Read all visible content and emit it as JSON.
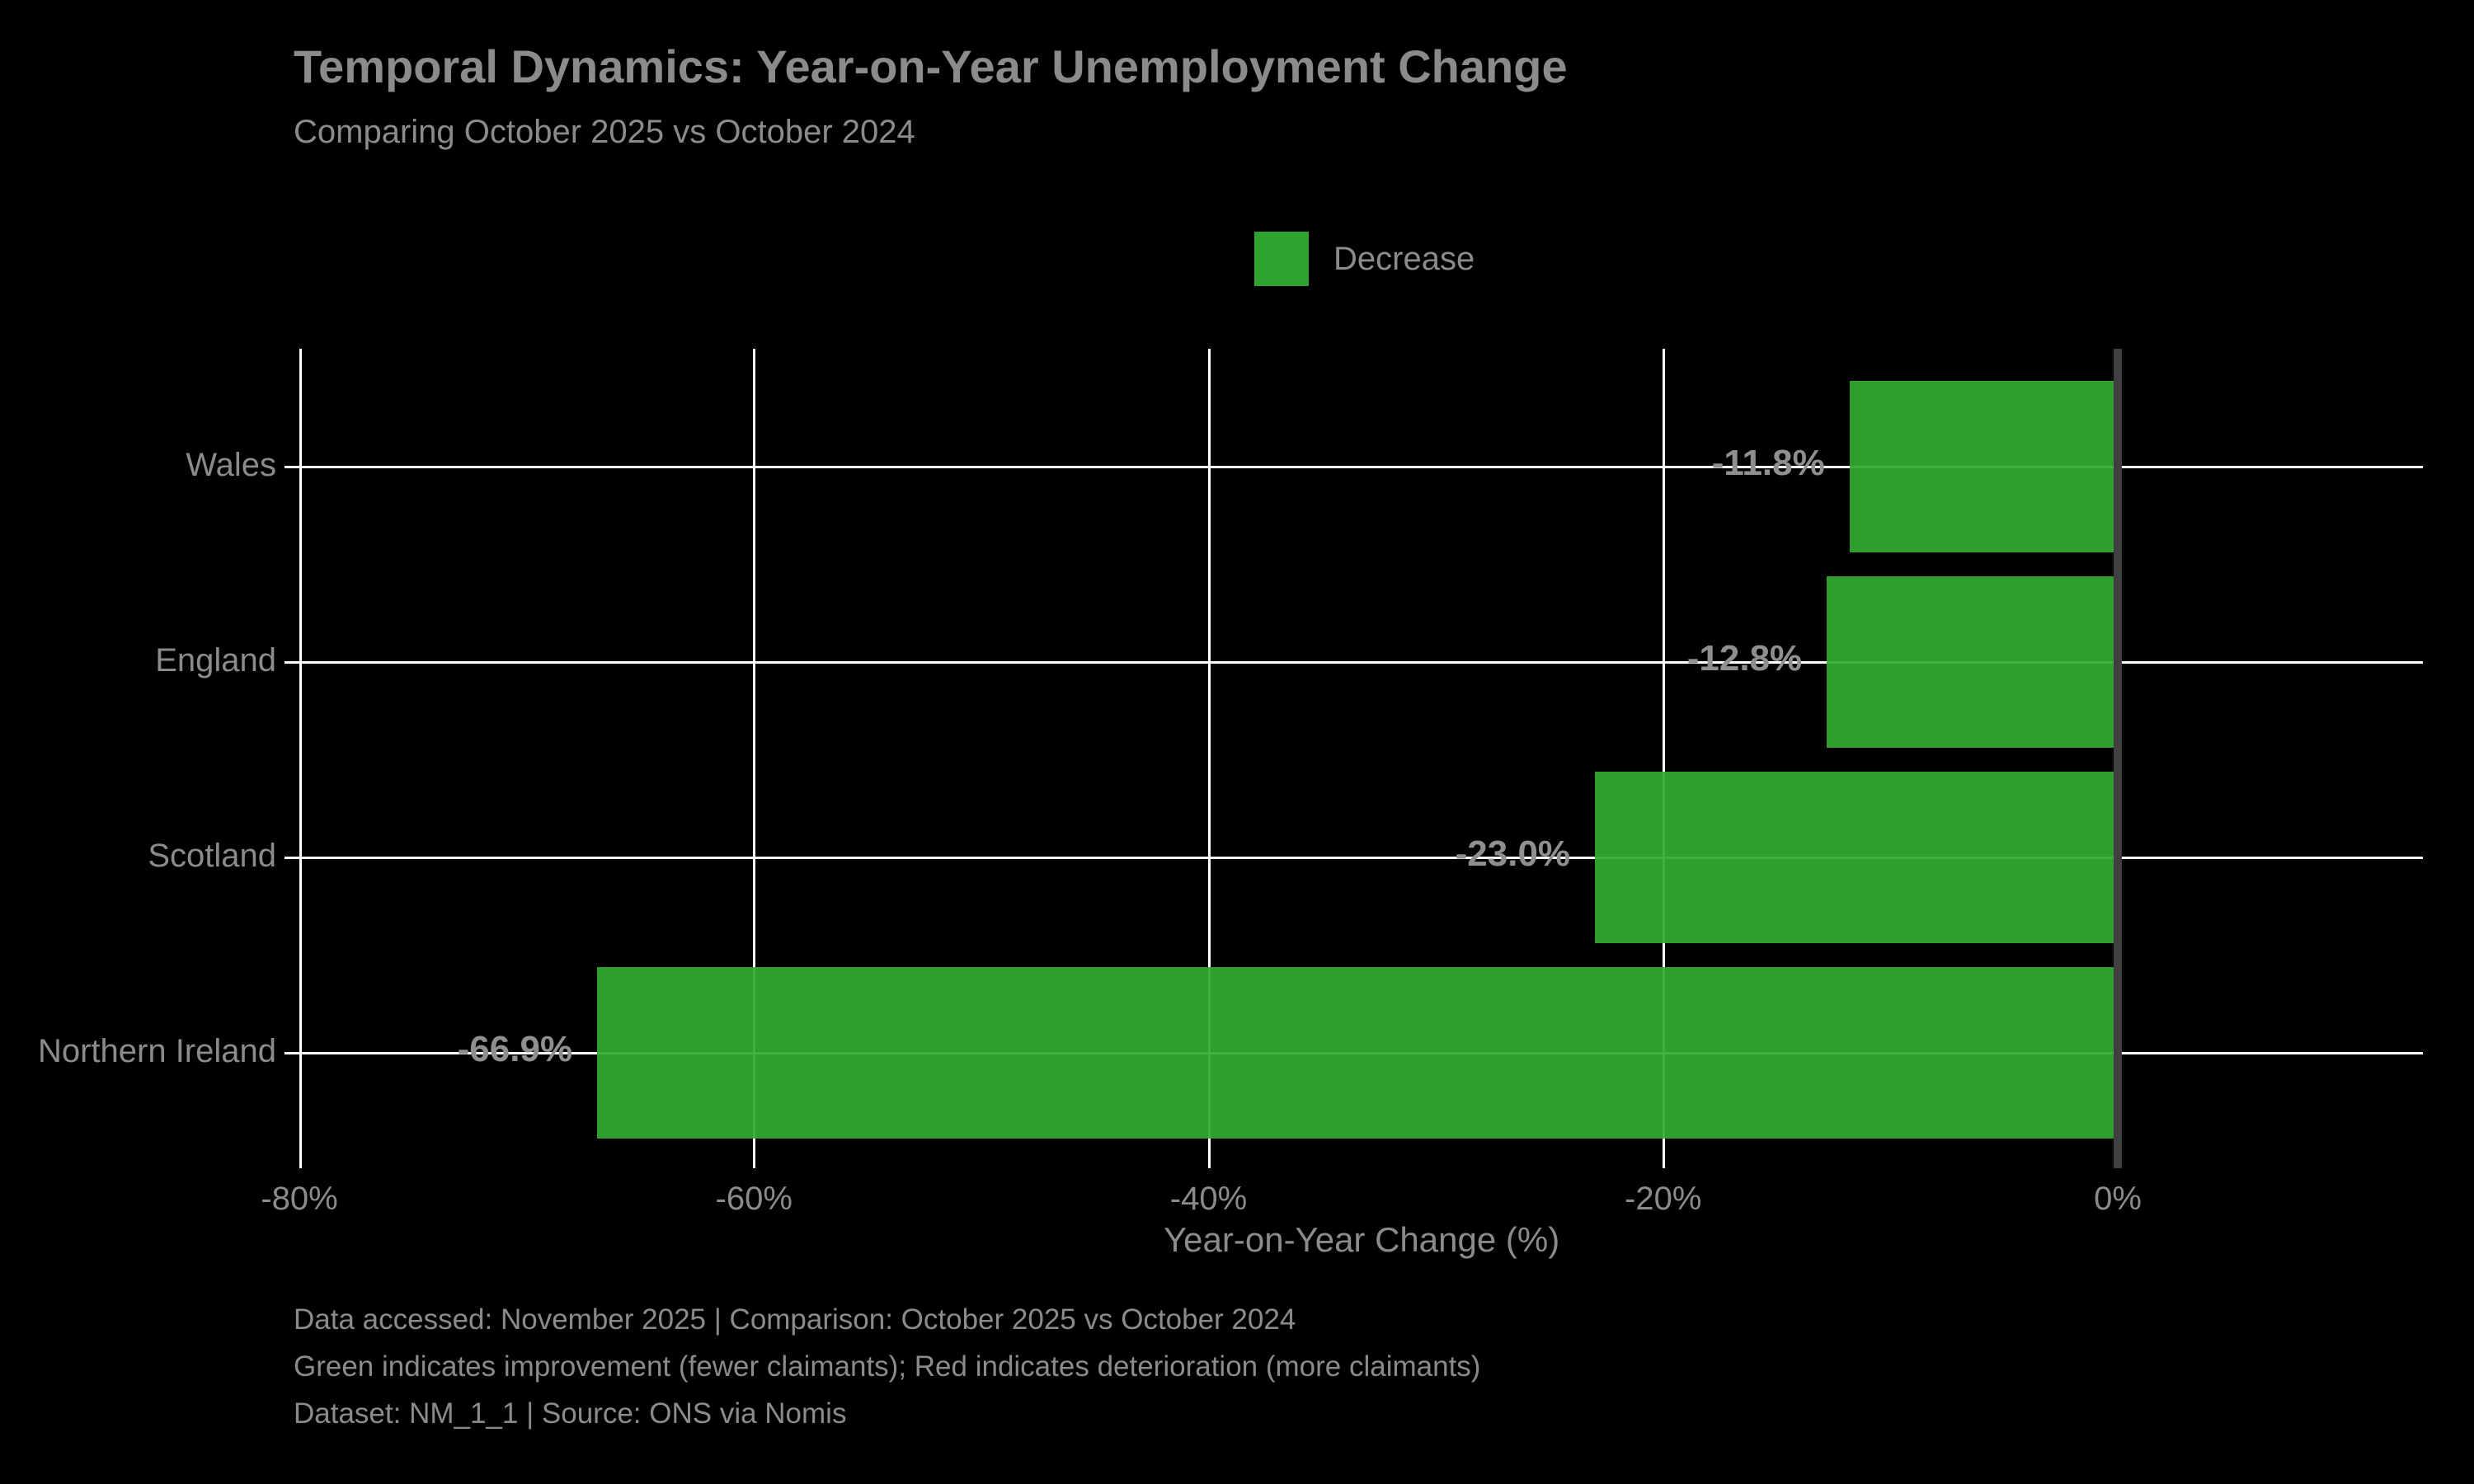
{
  "header": {
    "title": "Temporal Dynamics: Year-on-Year Unemployment Change",
    "subtitle": "Comparing October 2025 vs October 2024"
  },
  "legend": {
    "label": "Decrease",
    "color": "#2fa32f"
  },
  "chart_data": {
    "type": "bar",
    "orientation": "horizontal",
    "title": "Temporal Dynamics: Year-on-Year Unemployment Change",
    "subtitle": "Comparing October 2025 vs October 2024",
    "categories": [
      "Wales",
      "England",
      "Scotland",
      "Northern Ireland"
    ],
    "values": [
      -11.8,
      -12.8,
      -23.0,
      -66.9
    ],
    "value_labels": [
      "-11.8%",
      "-12.8%",
      "-23.0%",
      "-66.9%"
    ],
    "bar_color": "#2fa32f",
    "xlabel": "Year-on-Year Change (%)",
    "ylabel": "",
    "xlim": [
      -80,
      13.4
    ],
    "x_tick_values": [
      -80,
      -60,
      -40,
      -20,
      0
    ],
    "x_tick_labels": [
      "-80%",
      "-60%",
      "-40%",
      "-20%",
      "0%"
    ],
    "grid": true,
    "legend_entries": [
      "Decrease"
    ],
    "legend_position": "upper center",
    "background": "#000000",
    "text_color": "#8b8b8b",
    "grid_color": "#ffffff",
    "zero_line_color": "#3e3f3e"
  },
  "footer": {
    "lines": [
      "Data accessed: November 2025 | Comparison: October 2025 vs October 2024",
      "Green indicates improvement (fewer claimants); Red indicates deterioration (more claimants)",
      "Dataset: NM_1_1 | Source: ONS via Nomis"
    ]
  }
}
